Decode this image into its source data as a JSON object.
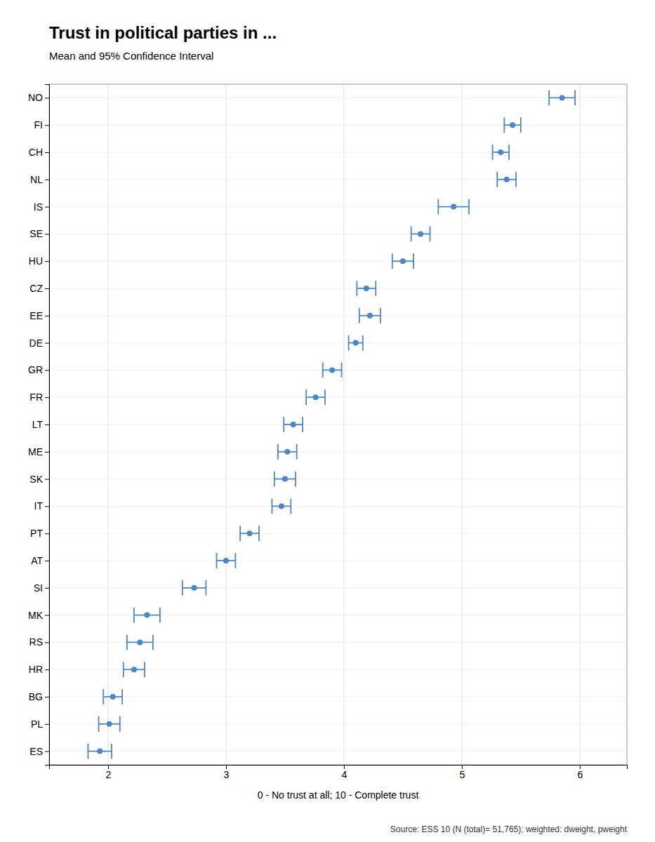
{
  "chart_data": {
    "type": "dot",
    "orientation": "horizontal",
    "title": "Trust in political parties in ...",
    "subtitle": "Mean and 95% Confidence Interval",
    "xlabel": "0 - No trust at all; 10 - Complete trust",
    "source": "Source: ESS 10 (N (total)= 51,765); weighted: dweight, pweight",
    "categories": [
      "NO",
      "FI",
      "CH",
      "NL",
      "IS",
      "SE",
      "HU",
      "CZ",
      "EE",
      "DE",
      "GR",
      "FR",
      "LT",
      "ME",
      "SK",
      "IT",
      "PT",
      "AT",
      "SI",
      "MK",
      "RS",
      "HR",
      "BG",
      "PL",
      "ES"
    ],
    "values": [
      5.85,
      5.43,
      5.33,
      5.38,
      4.93,
      4.65,
      4.5,
      4.19,
      4.22,
      4.1,
      3.9,
      3.76,
      3.57,
      3.52,
      3.5,
      3.47,
      3.2,
      3.0,
      2.73,
      2.33,
      2.27,
      2.22,
      2.04,
      2.01,
      1.93
    ],
    "ci_lower": [
      5.74,
      5.36,
      5.26,
      5.3,
      4.8,
      4.57,
      4.41,
      4.11,
      4.13,
      4.04,
      3.82,
      3.68,
      3.49,
      3.44,
      3.41,
      3.39,
      3.12,
      2.92,
      2.63,
      2.22,
      2.16,
      2.13,
      1.96,
      1.92,
      1.83
    ],
    "ci_upper": [
      5.96,
      5.5,
      5.4,
      5.46,
      5.06,
      4.73,
      4.59,
      4.27,
      4.31,
      4.16,
      3.98,
      3.84,
      3.65,
      3.6,
      3.59,
      3.55,
      3.28,
      3.08,
      2.83,
      2.44,
      2.38,
      2.31,
      2.12,
      2.1,
      2.03
    ],
    "color": "#4a86c8",
    "xlim": [
      1.5,
      6.4
    ],
    "xticks": [
      2,
      3,
      4,
      5,
      6
    ],
    "grid": true
  }
}
